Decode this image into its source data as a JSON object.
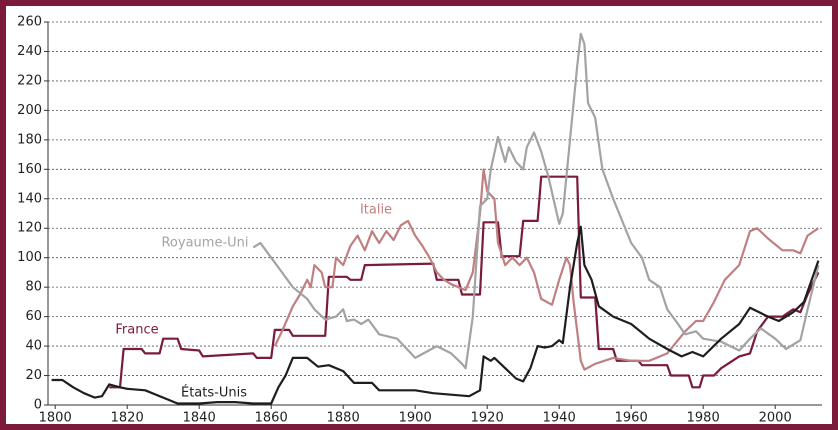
{
  "chart_data": {
    "type": "line",
    "xlim": [
      1798,
      2013
    ],
    "ylim": [
      0,
      260
    ],
    "xticks": [
      1800,
      1820,
      1840,
      1860,
      1880,
      1900,
      1920,
      1940,
      1960,
      1980,
      2000
    ],
    "yticks": [
      0,
      20,
      40,
      60,
      80,
      100,
      120,
      140,
      160,
      180,
      200,
      220,
      240,
      260
    ],
    "grid": true,
    "series": [
      {
        "name": "France",
        "color": "#7b1a3a",
        "x": [
          1815,
          1818,
          1819,
          1824,
          1825,
          1829,
          1830,
          1834,
          1835,
          1840,
          1841,
          1855,
          1856,
          1860,
          1861,
          1865,
          1866,
          1875,
          1876,
          1881,
          1882,
          1885,
          1886,
          1905,
          1906,
          1912,
          1913,
          1918,
          1919,
          1923,
          1924,
          1929,
          1930,
          1934,
          1935,
          1945,
          1946,
          1950,
          1951,
          1955,
          1956,
          1962,
          1963,
          1970,
          1971,
          1976,
          1977,
          1979,
          1980,
          1983,
          1985,
          1990,
          1993,
          1995,
          1998,
          2002,
          2005,
          2007,
          2009,
          2012
        ],
        "values": [
          12,
          12,
          38,
          38,
          35,
          35,
          45,
          45,
          38,
          37,
          33,
          35,
          32,
          32,
          51,
          51,
          47,
          47,
          87,
          87,
          85,
          85,
          95,
          96,
          85,
          85,
          75,
          75,
          124,
          124,
          101,
          101,
          125,
          125,
          155,
          155,
          73,
          73,
          38,
          38,
          30,
          30,
          27,
          27,
          20,
          20,
          12,
          12,
          20,
          20,
          25,
          33,
          35,
          50,
          60,
          60,
          65,
          63,
          75,
          90
        ]
      },
      {
        "name": "Italie",
        "color": "#c07f80",
        "x": [
          1861,
          1863,
          1866,
          1868,
          1870,
          1871,
          1872,
          1874,
          1875,
          1877,
          1878,
          1880,
          1882,
          1884,
          1886,
          1888,
          1890,
          1892,
          1894,
          1896,
          1898,
          1900,
          1902,
          1904,
          1906,
          1908,
          1910,
          1912,
          1914,
          1916,
          1918,
          1919,
          1920,
          1922,
          1923,
          1925,
          1927,
          1929,
          1931,
          1933,
          1935,
          1938,
          1940,
          1942,
          1943,
          1944,
          1946,
          1947,
          1950,
          1955,
          1960,
          1965,
          1970,
          1975,
          1978,
          1980,
          1983,
          1986,
          1990,
          1993,
          1995,
          1998,
          2002,
          2005,
          2007,
          2009,
          2012
        ],
        "values": [
          40,
          50,
          67,
          75,
          85,
          80,
          95,
          90,
          80,
          80,
          100,
          95,
          108,
          115,
          105,
          118,
          110,
          118,
          112,
          122,
          125,
          115,
          108,
          100,
          90,
          85,
          82,
          80,
          78,
          90,
          130,
          160,
          145,
          140,
          110,
          95,
          100,
          95,
          100,
          90,
          72,
          68,
          85,
          100,
          95,
          70,
          30,
          24,
          28,
          32,
          30,
          30,
          35,
          50,
          57,
          57,
          70,
          85,
          95,
          118,
          120,
          113,
          105,
          105,
          103,
          115,
          120
        ]
      },
      {
        "name": "Royaume-Uni",
        "color": "#a3a3a3",
        "x": [
          1855,
          1857,
          1860,
          1863,
          1866,
          1870,
          1872,
          1875,
          1878,
          1880,
          1881,
          1883,
          1885,
          1887,
          1890,
          1895,
          1900,
          1903,
          1906,
          1910,
          1913,
          1914,
          1916,
          1918,
          1920,
          1921,
          1923,
          1925,
          1926,
          1928,
          1930,
          1931,
          1933,
          1935,
          1937,
          1940,
          1941,
          1943,
          1945,
          1946,
          1947,
          1948,
          1950,
          1952,
          1955,
          1960,
          1963,
          1965,
          1968,
          1970,
          1973,
          1975,
          1978,
          1980,
          1985,
          1990,
          1993,
          1996,
          2000,
          2003,
          2007,
          2009,
          2012
        ],
        "values": [
          107,
          110,
          100,
          90,
          80,
          72,
          65,
          58,
          60,
          65,
          57,
          58,
          55,
          58,
          48,
          45,
          32,
          36,
          40,
          35,
          28,
          25,
          60,
          135,
          140,
          160,
          182,
          165,
          175,
          165,
          160,
          175,
          185,
          172,
          155,
          123,
          130,
          180,
          230,
          252,
          245,
          205,
          195,
          160,
          140,
          110,
          100,
          85,
          80,
          65,
          55,
          48,
          50,
          45,
          43,
          37,
          45,
          52,
          45,
          38,
          44,
          65,
          95
        ]
      },
      {
        "name": "États-Unis",
        "color": "#1e1e1e",
        "x": [
          1799,
          1802,
          1805,
          1808,
          1811,
          1813,
          1815,
          1818,
          1820,
          1825,
          1830,
          1834,
          1840,
          1845,
          1850,
          1855,
          1860,
          1862,
          1864,
          1866,
          1870,
          1873,
          1876,
          1880,
          1883,
          1888,
          1890,
          1895,
          1900,
          1905,
          1910,
          1915,
          1918,
          1919,
          1921,
          1922,
          1925,
          1928,
          1930,
          1932,
          1934,
          1936,
          1938,
          1940,
          1941,
          1943,
          1945,
          1946,
          1947,
          1949,
          1951,
          1955,
          1960,
          1965,
          1970,
          1974,
          1977,
          1980,
          1985,
          1990,
          1993,
          1998,
          2001,
          2005,
          2008,
          2012
        ],
        "values": [
          17,
          17,
          12,
          8,
          5,
          6,
          14,
          12,
          11,
          10,
          5,
          1,
          1,
          2,
          2,
          1,
          1,
          12,
          20,
          32,
          32,
          26,
          27,
          23,
          15,
          15,
          10,
          10,
          10,
          8,
          7,
          6,
          10,
          33,
          30,
          32,
          25,
          18,
          16,
          25,
          40,
          39,
          40,
          44,
          42,
          80,
          110,
          121,
          95,
          85,
          67,
          60,
          55,
          45,
          38,
          33,
          36,
          33,
          45,
          55,
          66,
          60,
          57,
          63,
          70,
          98
        ]
      }
    ]
  }
}
